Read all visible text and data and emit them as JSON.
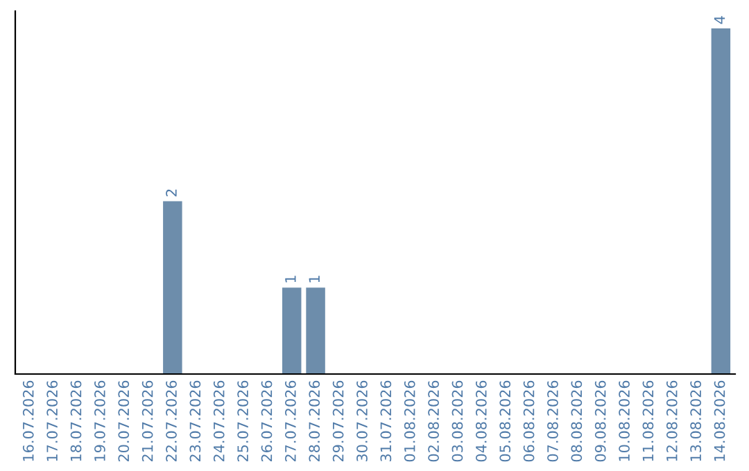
{
  "chart_data": {
    "type": "bar",
    "categories": [
      "16.07.2026",
      "17.07.2026",
      "18.07.2026",
      "19.07.2026",
      "20.07.2026",
      "21.07.2026",
      "22.07.2026",
      "23.07.2026",
      "24.07.2026",
      "25.07.2026",
      "26.07.2026",
      "27.07.2026",
      "28.07.2026",
      "29.07.2026",
      "30.07.2026",
      "31.07.2026",
      "01.08.2026",
      "02.08.2026",
      "03.08.2026",
      "04.08.2026",
      "05.08.2026",
      "06.08.2026",
      "07.08.2026",
      "08.08.2026",
      "09.08.2026",
      "10.08.2026",
      "11.08.2026",
      "12.08.2026",
      "13.08.2026",
      "14.08.2026"
    ],
    "values": [
      0,
      0,
      0,
      0,
      0,
      0,
      2,
      0,
      0,
      0,
      0,
      1,
      1,
      0,
      0,
      0,
      0,
      0,
      0,
      0,
      0,
      0,
      0,
      0,
      0,
      0,
      0,
      0,
      0,
      4
    ],
    "value_labels": [
      null,
      null,
      null,
      null,
      null,
      null,
      "2",
      null,
      null,
      null,
      null,
      "1",
      "1",
      null,
      null,
      null,
      null,
      null,
      null,
      null,
      null,
      null,
      null,
      null,
      null,
      null,
      null,
      null,
      null,
      "4"
    ],
    "color": "#6d8dab",
    "ylim": [
      0,
      4.2
    ],
    "tick_labels": "x",
    "grid": false,
    "legend": false
  }
}
